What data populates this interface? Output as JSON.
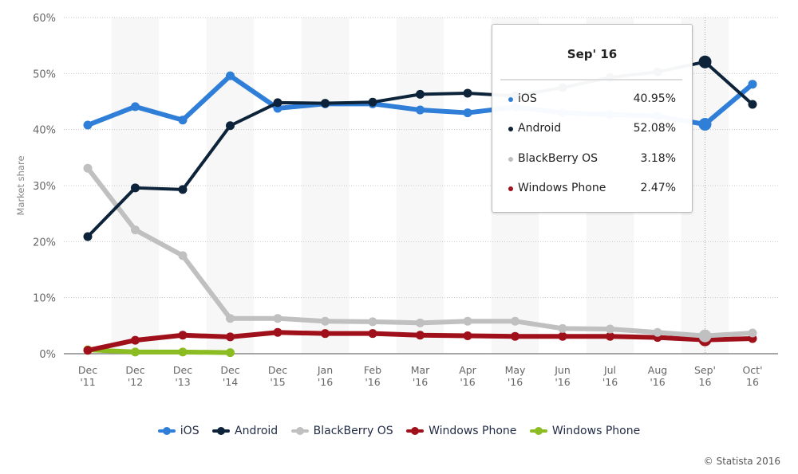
{
  "chart_data": {
    "type": "line",
    "title": "",
    "xlabel": "",
    "ylabel": "Market share",
    "ylim": [
      0,
      60
    ],
    "yticks": [
      "0%",
      "10%",
      "20%",
      "30%",
      "40%",
      "50%",
      "60%"
    ],
    "ytick_values": [
      0,
      10,
      20,
      30,
      40,
      50,
      60
    ],
    "grid": true,
    "legend_position": "bottom",
    "categories": [
      [
        "Dec",
        "'11"
      ],
      [
        "Dec",
        "'12"
      ],
      [
        "Dec",
        "'13"
      ],
      [
        "Dec",
        "'14"
      ],
      [
        "Dec",
        "'15"
      ],
      [
        "Jan",
        "'16"
      ],
      [
        "Feb",
        "'16"
      ],
      [
        "Mar",
        "'16"
      ],
      [
        "Apr",
        "'16"
      ],
      [
        "May",
        "'16"
      ],
      [
        "Jun",
        "'16"
      ],
      [
        "Jul",
        "'16"
      ],
      [
        "Aug",
        "'16"
      ],
      [
        "Sep'",
        "16"
      ],
      [
        "Oct'",
        "16"
      ]
    ],
    "series": [
      {
        "name": "iOS",
        "color": "#2f7ed8",
        "values": [
          40.8,
          44.1,
          41.7,
          49.6,
          43.8,
          44.6,
          44.6,
          43.5,
          43.0,
          44.0,
          43.0,
          42.7,
          42.4,
          40.95,
          48.1
        ]
      },
      {
        "name": "Android",
        "color": "#0d233a",
        "values": [
          20.9,
          29.6,
          29.3,
          40.7,
          44.8,
          44.7,
          44.9,
          46.3,
          46.5,
          46.0,
          47.5,
          49.3,
          50.3,
          52.08,
          44.5
        ]
      },
      {
        "name": "BlackBerry OS",
        "color": "#c0c0c0",
        "values": [
          33.1,
          22.1,
          17.5,
          6.3,
          6.3,
          5.8,
          5.7,
          5.5,
          5.8,
          5.8,
          4.5,
          4.4,
          3.8,
          3.18,
          3.7
        ]
      },
      {
        "name": "Windows Phone",
        "color": "#a0101a",
        "values": [
          0.6,
          2.4,
          3.3,
          3.0,
          3.8,
          3.6,
          3.6,
          3.3,
          3.2,
          3.1,
          3.1,
          3.1,
          2.9,
          2.47,
          2.7
        ]
      },
      {
        "name": "Windows Phone",
        "color": "#8bbc21",
        "values": [
          0.7,
          0.3,
          0.3,
          0.2,
          null,
          null,
          null,
          null,
          null,
          null,
          null,
          null,
          null,
          null,
          null
        ]
      }
    ],
    "highlight_index": 13
  },
  "tooltip": {
    "title": "Sep' 16",
    "rows": [
      {
        "name": "iOS",
        "value": "40.95%",
        "color": "#2f7ed8"
      },
      {
        "name": "Android",
        "value": "52.08%",
        "color": "#0d233a"
      },
      {
        "name": "BlackBerry OS",
        "value": "3.18%",
        "color": "#c0c0c0"
      },
      {
        "name": "Windows Phone",
        "value": "2.47%",
        "color": "#a0101a"
      }
    ]
  },
  "legend": [
    {
      "label": "iOS",
      "color": "#2f7ed8"
    },
    {
      "label": "Android",
      "color": "#0d233a"
    },
    {
      "label": "BlackBerry OS",
      "color": "#c0c0c0"
    },
    {
      "label": "Windows Phone",
      "color": "#a0101a"
    },
    {
      "label": "Windows Phone",
      "color": "#8bbc21"
    }
  ],
  "credit": "© Statista 2016"
}
